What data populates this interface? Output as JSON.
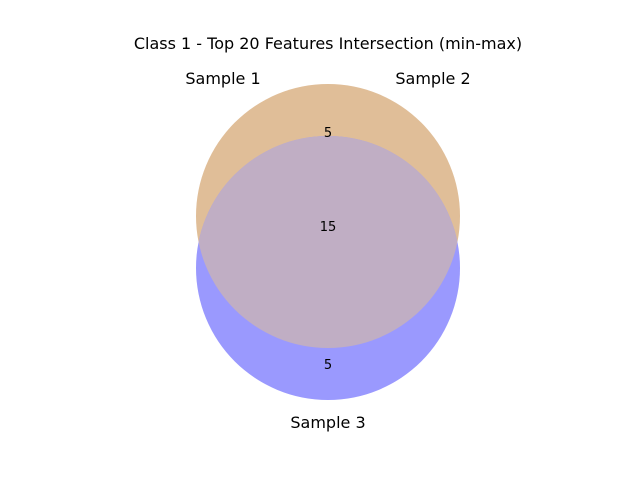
{
  "title": "Class 1 - Top 20 Features Intersection (min-max)",
  "sets": [
    {
      "label": "Sample 1"
    },
    {
      "label": "Sample 2"
    },
    {
      "label": "Sample 3"
    }
  ],
  "regions": {
    "top": "5",
    "center": "15",
    "bottom": "5"
  },
  "colors": {
    "upper_circle": "#e0be98",
    "lower_circle": "#9a99fe",
    "overlap": "#c0aec4"
  }
}
